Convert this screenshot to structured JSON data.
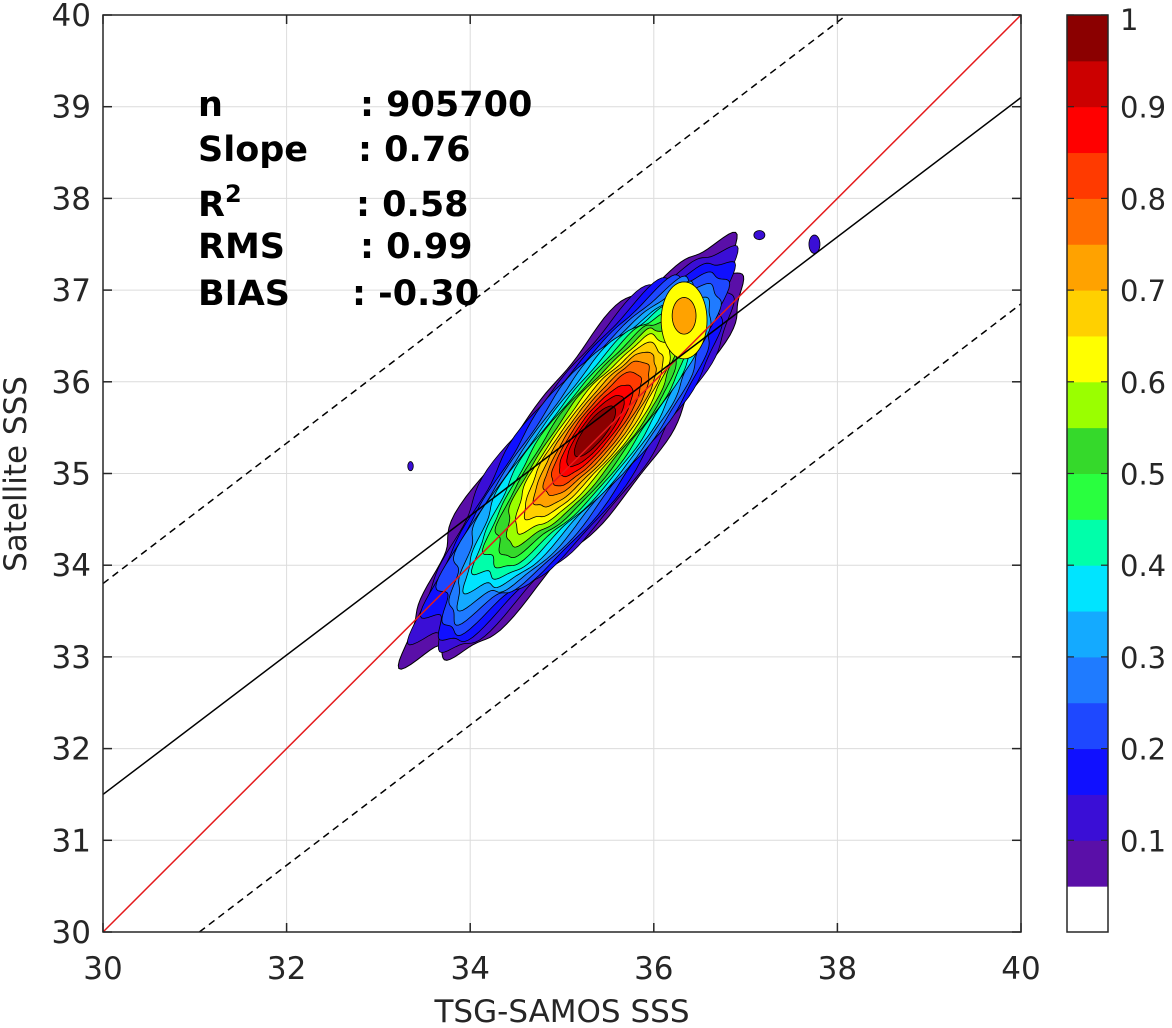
{
  "chart_data": {
    "type": "heatmap",
    "subtype": "filled-contour density scatter",
    "xlabel": "TSG-SAMOS SSS",
    "ylabel": "Satellite SSS",
    "xlim": [
      30,
      40
    ],
    "ylim": [
      30,
      40
    ],
    "xticks": [
      "30",
      "32",
      "34",
      "36",
      "38",
      "40"
    ],
    "yticks": [
      "30",
      "31",
      "32",
      "33",
      "34",
      "35",
      "36",
      "37",
      "38",
      "39",
      "40"
    ],
    "grid": true,
    "stats": [
      {
        "label": "n",
        "sep": ":",
        "value": "905700"
      },
      {
        "label": "Slope",
        "sep": ":",
        "value": "0.76"
      },
      {
        "label": "R",
        "sup": "2",
        "sep": ":",
        "value": "0.58"
      },
      {
        "label": "RMS",
        "sep": ":",
        "value": "0.99"
      },
      {
        "label": "BIAS",
        "sep": ":",
        "value": "-0.30"
      }
    ],
    "lines": [
      {
        "kind": "identity",
        "color": "#e41a1c",
        "style": "solid",
        "points": [
          [
            30,
            30
          ],
          [
            40,
            40
          ]
        ]
      },
      {
        "kind": "regression",
        "color": "#000000",
        "style": "solid",
        "points": [
          [
            30,
            31.5
          ],
          [
            40,
            39.1
          ]
        ]
      },
      {
        "kind": "upper-bound",
        "color": "#000000",
        "style": "dashed",
        "points": [
          [
            30,
            33.8
          ],
          [
            38.1,
            40
          ]
        ]
      },
      {
        "kind": "lower-bound",
        "color": "#000000",
        "style": "dashed",
        "points": [
          [
            31.05,
            30
          ],
          [
            40,
            36.85
          ]
        ]
      }
    ],
    "density_peaks": [
      {
        "x": 35.35,
        "y": 35.45,
        "value": 1.0
      },
      {
        "x": 36.33,
        "y": 36.72,
        "value": 0.75
      }
    ],
    "colorbar": {
      "range": [
        0,
        1
      ],
      "ticks": [
        "0.1",
        "0.2",
        "0.3",
        "0.4",
        "0.5",
        "0.6",
        "0.7",
        "0.8",
        "0.9",
        "1"
      ],
      "colors": [
        "#ffffff",
        "#5a0fa8",
        "#3a0ed6",
        "#1010ff",
        "#1e48ff",
        "#1f7bff",
        "#14aaff",
        "#00e4ff",
        "#00ffaa",
        "#29ff3f",
        "#35d92b",
        "#9aff00",
        "#ffff00",
        "#ffd000",
        "#ffa200",
        "#ff6d00",
        "#ff3a00",
        "#ff0000",
        "#cc0000",
        "#8b0000"
      ]
    }
  }
}
